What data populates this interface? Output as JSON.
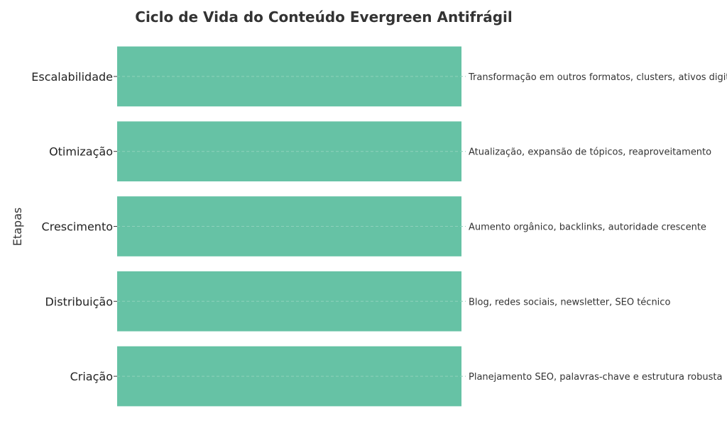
{
  "chart_data": {
    "type": "bar",
    "orientation": "horizontal",
    "title": "Ciclo de Vida do Conteúdo Evergreen Antifrágil",
    "xlabel": "",
    "ylabel": "Etapas",
    "categories": [
      "Criação",
      "Distribuição",
      "Crescimento",
      "Otimização",
      "Escalabilidade"
    ],
    "values": [
      1,
      1,
      1,
      1,
      1
    ],
    "xlim": [
      0,
      1
    ],
    "annotations": [
      "Planejamento SEO, palavras-chave e estrutura robusta",
      "Blog, redes sociais, newsletter, SEO técnico",
      "Aumento orgânico, backlinks, autoridade crescente",
      "Atualização, expansão de tópicos, reaproveitamento",
      "Transformação em outros formatos, clusters, ativos digitais"
    ],
    "bar_color": "#66c2a5",
    "grid": true,
    "x_axis_visible": false
  }
}
